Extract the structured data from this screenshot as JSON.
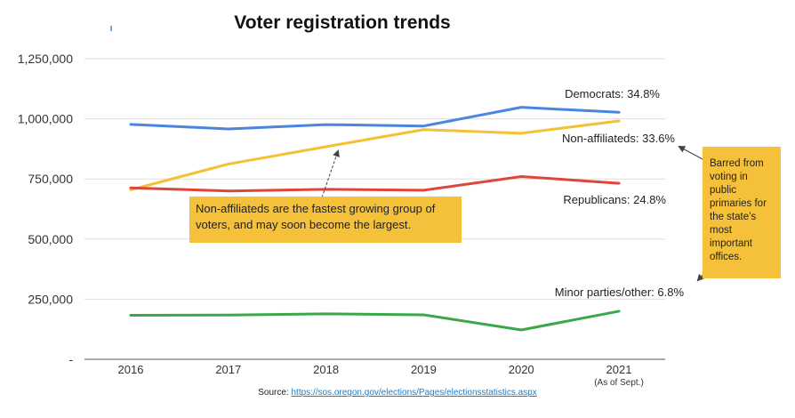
{
  "chart_data": {
    "type": "line",
    "title": "Voter registration trends",
    "x": [
      "2016",
      "2017",
      "2018",
      "2019",
      "2020",
      "2021"
    ],
    "x_sublabels": [
      "",
      "",
      "",
      "",
      "",
      "(As of Sept.)"
    ],
    "ylim": [
      0,
      1250000
    ],
    "yticks": [
      0,
      250000,
      500000,
      750000,
      1000000,
      1250000
    ],
    "ytick_labels": [
      "-",
      "250,000",
      "500,000",
      "750,000",
      "1,000,000",
      "1,250,000"
    ],
    "grid": true,
    "series": [
      {
        "name": "Democrats",
        "label": "Democrats: 34.8%",
        "color": "#4a86e0",
        "values": [
          977000,
          958000,
          976000,
          970000,
          1048000,
          1027000
        ]
      },
      {
        "name": "Non-affiliateds",
        "label": "Non-affiliateds: 33.6%",
        "color": "#f4c132",
        "values": [
          705000,
          812000,
          884000,
          955000,
          940000,
          991000
        ]
      },
      {
        "name": "Republicans",
        "label": "Republicans: 24.8%",
        "color": "#e0453b",
        "values": [
          713000,
          700000,
          707000,
          703000,
          760000,
          732000
        ]
      },
      {
        "name": "Minor parties/other",
        "label": "Minor parties/other: 6.8%",
        "color": "#3aa84a",
        "values": [
          183000,
          184000,
          189000,
          185000,
          122000,
          200000
        ]
      }
    ],
    "annotations": [
      "Non-affiliateds are the fastest growing group of voters, and may soon become the largest.",
      "Barred from voting in public primaries for the state’s most important offices."
    ]
  },
  "source": {
    "prefix": "Source: ",
    "link": "https://sos.oregon.gov/elections/Pages/electionsstatistics.aspx"
  }
}
